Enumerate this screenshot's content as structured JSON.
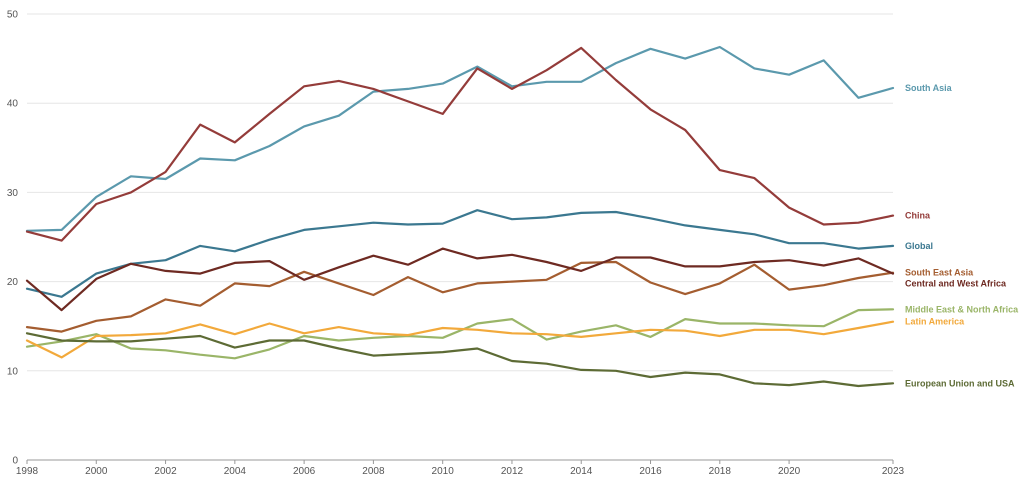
{
  "chart_data": {
    "type": "line",
    "title": "",
    "xlabel": "",
    "ylabel": "",
    "xlim": [
      1998,
      2023
    ],
    "ylim": [
      0,
      50
    ],
    "y_ticks": [
      0,
      10,
      20,
      30,
      40,
      50
    ],
    "x_ticks": [
      1998,
      2000,
      2002,
      2004,
      2006,
      2008,
      2010,
      2012,
      2014,
      2016,
      2018,
      2020,
      2023
    ],
    "grid": "horizontal",
    "legend": "direct labels at line ends (right)",
    "x": [
      1998,
      1999,
      2000,
      2001,
      2002,
      2003,
      2004,
      2005,
      2006,
      2007,
      2008,
      2009,
      2010,
      2011,
      2012,
      2013,
      2014,
      2015,
      2016,
      2017,
      2018,
      2019,
      2020,
      2021,
      2022,
      2023
    ],
    "series": [
      {
        "name": "South Asia",
        "color": "#5b99ad",
        "values": [
          25.7,
          25.8,
          29.5,
          31.8,
          31.5,
          33.8,
          33.6,
          35.2,
          37.4,
          38.6,
          41.3,
          41.6,
          42.2,
          44.1,
          41.9,
          42.4,
          42.4,
          44.5,
          46.1,
          45.0,
          46.3,
          43.9,
          43.2,
          44.8,
          40.6,
          41.7
        ]
      },
      {
        "name": "China",
        "color": "#943c3a",
        "values": [
          25.6,
          24.6,
          28.7,
          30.0,
          32.3,
          37.6,
          35.6,
          38.8,
          41.9,
          42.5,
          41.6,
          40.2,
          38.8,
          43.9,
          41.6,
          43.7,
          46.2,
          42.6,
          39.3,
          37.0,
          32.5,
          31.6,
          28.3,
          26.4,
          26.6,
          27.4
        ]
      },
      {
        "name": "Global",
        "color": "#3b7890",
        "values": [
          19.2,
          18.3,
          20.9,
          22.0,
          22.4,
          24.0,
          23.4,
          24.7,
          25.8,
          26.2,
          26.6,
          26.4,
          26.5,
          28.0,
          27.0,
          27.2,
          27.7,
          27.8,
          27.1,
          26.3,
          25.8,
          25.3,
          24.3,
          24.3,
          23.7,
          24.0
        ]
      },
      {
        "name": "South East Asia",
        "color": "#a45d30",
        "values": [
          14.9,
          14.4,
          15.6,
          16.1,
          18.0,
          17.3,
          19.8,
          19.5,
          21.1,
          19.8,
          18.5,
          20.5,
          18.8,
          19.8,
          20.0,
          20.2,
          22.1,
          22.2,
          19.9,
          18.6,
          19.8,
          21.9,
          19.1,
          19.6,
          20.4,
          21.0
        ]
      },
      {
        "name": "Central and West Africa",
        "color": "#6e2a22",
        "values": [
          20.1,
          16.8,
          20.3,
          22.0,
          21.2,
          20.9,
          22.1,
          22.3,
          20.2,
          21.6,
          22.9,
          21.9,
          23.7,
          22.6,
          23.0,
          22.2,
          21.2,
          22.7,
          22.7,
          21.7,
          21.7,
          22.2,
          22.4,
          21.8,
          22.6,
          20.9
        ]
      },
      {
        "name": "Middle East & North Africa",
        "color": "#9ab568",
        "values": [
          12.7,
          13.3,
          14.1,
          12.5,
          12.3,
          11.8,
          11.4,
          12.4,
          13.9,
          13.4,
          13.7,
          13.9,
          13.7,
          15.3,
          15.8,
          13.5,
          14.4,
          15.1,
          13.8,
          15.8,
          15.3,
          15.3,
          15.1,
          15.0,
          16.8,
          16.9
        ]
      },
      {
        "name": "Latin America",
        "color": "#f2a93b",
        "values": [
          13.4,
          11.5,
          13.9,
          14.0,
          14.2,
          15.2,
          14.1,
          15.3,
          14.2,
          14.9,
          14.2,
          14.0,
          14.8,
          14.6,
          14.2,
          14.1,
          13.8,
          14.2,
          14.6,
          14.5,
          13.9,
          14.6,
          14.6,
          14.1,
          14.8,
          15.5
        ]
      },
      {
        "name": "European Union and USA",
        "color": "#5d6b35",
        "values": [
          14.2,
          13.4,
          13.3,
          13.3,
          13.6,
          13.9,
          12.6,
          13.4,
          13.4,
          12.5,
          11.7,
          11.9,
          12.1,
          12.5,
          11.1,
          10.8,
          10.1,
          10.0,
          9.3,
          9.8,
          9.6,
          8.6,
          8.4,
          8.8,
          8.3,
          8.6
        ]
      }
    ]
  }
}
